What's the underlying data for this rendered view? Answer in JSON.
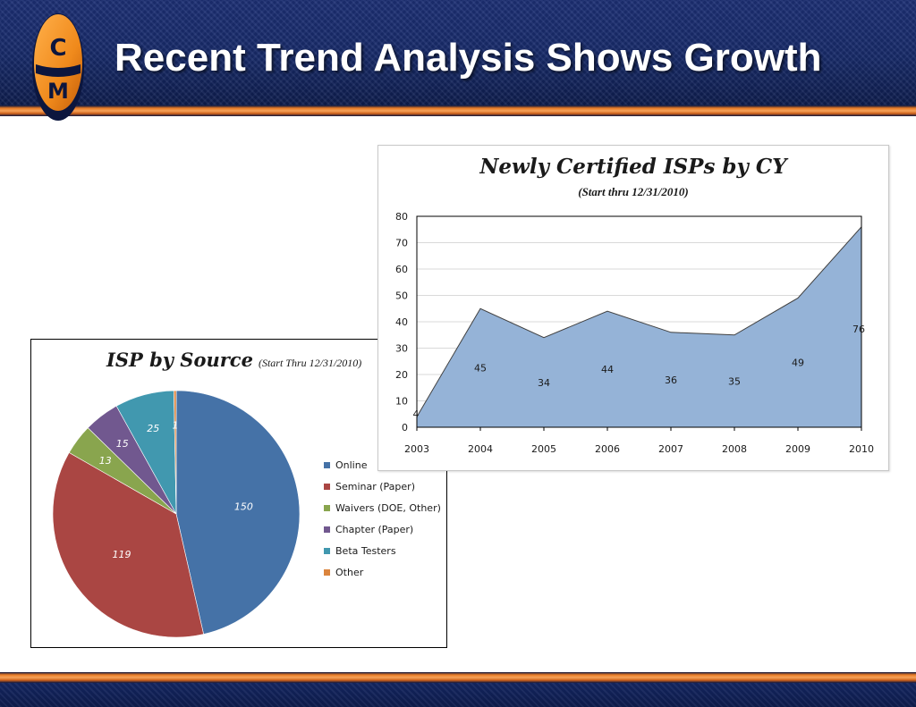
{
  "slide": {
    "title": "Recent Trend Analysis Shows Growth",
    "logo_letters": [
      "C",
      "M"
    ]
  },
  "colors": {
    "header_navy": "#1c2f74",
    "stripe_orange": "#e97a24",
    "area_fill": "#95b3d7"
  },
  "chart_data": [
    {
      "type": "pie",
      "title": "ISP by Source",
      "subtitle": "(Start Thru 12/31/2010)",
      "categories": [
        "Online",
        "Seminar (Paper)",
        "Waivers (DOE, Other)",
        "Chapter (Paper)",
        "Beta Testers",
        "Other"
      ],
      "values": [
        150,
        119,
        13,
        15,
        25,
        1
      ],
      "colors": [
        "#4572a7",
        "#aa4643",
        "#89a54e",
        "#71588f",
        "#4198af",
        "#db843d"
      ],
      "legend": "right"
    },
    {
      "type": "area",
      "title": "Newly Certified ISPs by CY",
      "subtitle": "(Start thru  12/31/2010)",
      "x": [
        "2003",
        "2004",
        "2005",
        "2006",
        "2007",
        "2008",
        "2009",
        "2010"
      ],
      "values": [
        4,
        45,
        34,
        44,
        36,
        35,
        49,
        76
      ],
      "ylim": [
        0,
        80
      ],
      "yticks": [
        0,
        10,
        20,
        30,
        40,
        50,
        60,
        70,
        80
      ],
      "grid": true,
      "legend": "none"
    }
  ]
}
